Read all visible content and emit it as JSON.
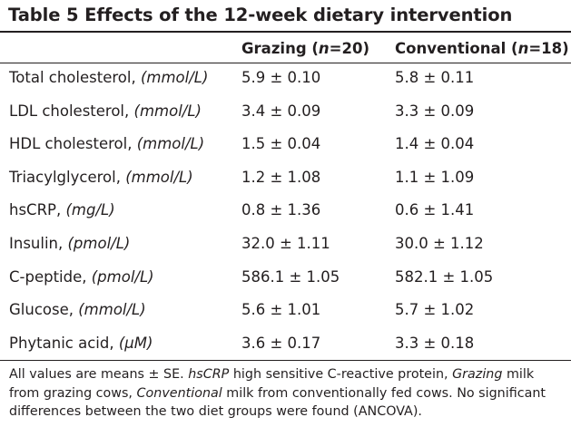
{
  "table": {
    "title": "Table 5 Effects of the 12-week dietary intervention",
    "columns": [
      {
        "label": "Grazing (",
        "n": "n",
        "eq": "=20)"
      },
      {
        "label": "Conventional (",
        "n": "n",
        "eq": "=18)"
      }
    ],
    "rows": [
      {
        "label": "Total cholesterol, ",
        "unit": "(mmol/L)",
        "grazing": "5.9 ± 0.10",
        "conventional": "5.8 ± 0.11"
      },
      {
        "label": "LDL cholesterol, ",
        "unit": "(mmol/L)",
        "grazing": "3.4 ± 0.09",
        "conventional": "3.3 ± 0.09"
      },
      {
        "label": "HDL cholesterol, ",
        "unit": "(mmol/L)",
        "grazing": "1.5 ± 0.04",
        "conventional": "1.4 ± 0.04"
      },
      {
        "label": "Triacylglycerol, ",
        "unit": "(mmol/L)",
        "grazing": "1.2 ± 1.08",
        "conventional": "1.1 ± 1.09"
      },
      {
        "label": "hsCRP, ",
        "unit": "(mg/L)",
        "grazing": "0.8 ± 1.36",
        "conventional": "0.6 ± 1.41"
      },
      {
        "label": "Insulin, ",
        "unit": "(pmol/L)",
        "grazing": "32.0 ± 1.11",
        "conventional": "30.0 ± 1.12"
      },
      {
        "label": "C-peptide, ",
        "unit": "(pmol/L)",
        "grazing": "586.1 ± 1.05",
        "conventional": "582.1 ± 1.05"
      },
      {
        "label": "Glucose, ",
        "unit": "(mmol/L)",
        "grazing": "5.6 ± 1.01",
        "conventional": "5.7 ± 1.02"
      },
      {
        "label": "Phytanic acid, ",
        "unit": "(µM)",
        "grazing": "3.6 ± 0.17",
        "conventional": "3.3 ± 0.18"
      }
    ]
  },
  "footnote": {
    "p1": "All values are means ± SE. ",
    "t1": "hsCRP",
    "p2": " high sensitive C-reactive protein, ",
    "t2": "Grazing",
    "p3": " milk from grazing cows, ",
    "t3": "Conventional",
    "p4": " milk from conventionally fed cows. No significant differences between the two diet groups were found (ANCOVA)."
  }
}
